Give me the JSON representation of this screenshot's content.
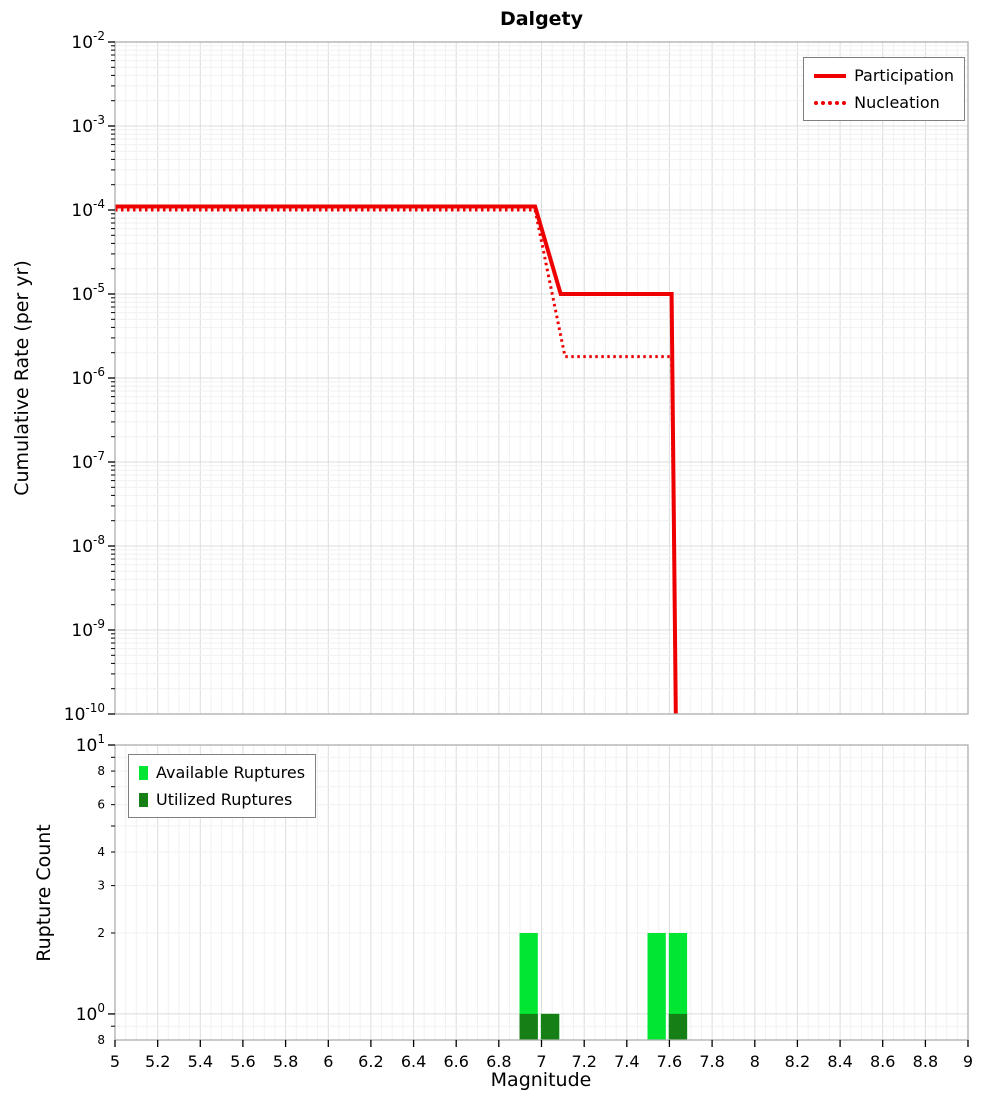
{
  "title": "Dalgety",
  "xlabel": "Magnitude",
  "colors": {
    "red": "#ee0000",
    "bright_green": "#00e632",
    "dark_green": "#168016",
    "grid_major": "#dcdcdc",
    "grid_minor": "#f1f1f1",
    "frame": "#adadad",
    "tick": "#000000"
  },
  "x_axis": {
    "min": 5,
    "max": 9,
    "tick_step": 0.2,
    "tick_labels": [
      "5",
      "5.2",
      "5.4",
      "5.6",
      "5.8",
      "6",
      "6.2",
      "6.4",
      "6.6",
      "6.8",
      "7",
      "7.2",
      "7.4",
      "7.6",
      "7.8",
      "8",
      "8.2",
      "8.4",
      "8.6",
      "8.8",
      "9"
    ]
  },
  "chart_data": [
    {
      "type": "line",
      "title": "Dalgety",
      "ylabel": "Cumulative Rate (per yr)",
      "xlabel": "Magnitude",
      "y_scale": "log",
      "ylim": [
        1e-10,
        0.01
      ],
      "xlim": [
        5,
        9
      ],
      "grid": true,
      "y_tick_exponents": [
        -2,
        -3,
        -4,
        -5,
        -6,
        -7,
        -8,
        -9,
        -10
      ],
      "legend_position": "top-right",
      "series": [
        {
          "name": "Participation",
          "style": "solid",
          "color": "#ee0000",
          "points": [
            [
              5,
              0.00011
            ],
            [
              6.97,
              0.00011
            ],
            [
              7.09,
              1e-05
            ],
            [
              7.61,
              1e-05
            ],
            [
              7.63,
              1e-10
            ]
          ]
        },
        {
          "name": "Nucleation",
          "style": "dotted",
          "color": "#ee0000",
          "points": [
            [
              5,
              0.0001
            ],
            [
              6.97,
              0.0001
            ],
            [
              7.11,
              1.8e-06
            ],
            [
              7.61,
              1.8e-06
            ],
            [
              7.63,
              1e-10
            ]
          ]
        }
      ]
    },
    {
      "type": "bar",
      "ylabel": "Rupture Count",
      "xlabel": "Magnitude",
      "y_scale": "log",
      "ylim": [
        0.8,
        10
      ],
      "xlim": [
        5,
        9
      ],
      "grid": true,
      "y_major_ticks": [
        [
          10,
          "1"
        ],
        [
          1,
          "0"
        ]
      ],
      "y_minor_tick_labels": [
        8,
        6,
        4,
        3,
        2
      ],
      "y_unlabeled_minor_ticks": [
        0.9,
        5,
        7,
        9
      ],
      "y_bottom_minor_label": "8",
      "legend_position": "top-left",
      "bar_width": 0.086,
      "series": [
        {
          "name": "Available Ruptures",
          "color": "#00e632",
          "bars": [
            {
              "x": 6.94,
              "count": 2
            },
            {
              "x": 7.04,
              "count": 1
            },
            {
              "x": 7.54,
              "count": 2
            },
            {
              "x": 7.64,
              "count": 2
            }
          ]
        },
        {
          "name": "Utilized Ruptures",
          "color": "#168016",
          "bars": [
            {
              "x": 6.94,
              "count": 1
            },
            {
              "x": 7.04,
              "count": 1
            },
            {
              "x": 7.64,
              "count": 1
            }
          ]
        }
      ]
    }
  ]
}
